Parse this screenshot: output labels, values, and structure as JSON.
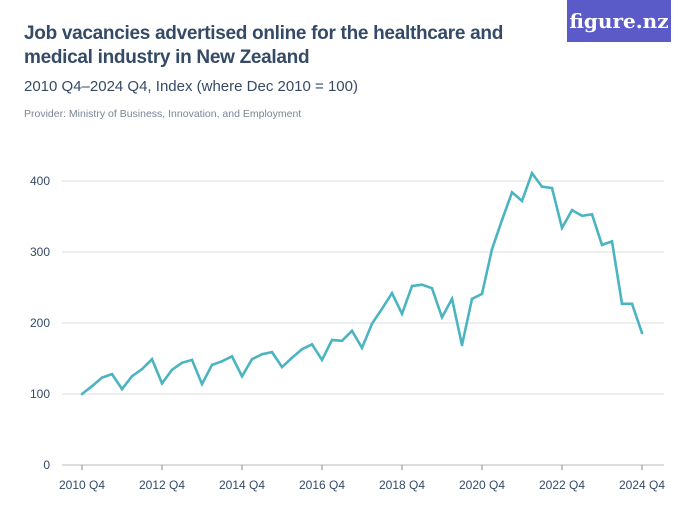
{
  "title": "Job vacancies advertised online for the healthcare and medical industry in New Zealand",
  "subtitle": "2010 Q4–2024 Q4, Index (where Dec 2010 = 100)",
  "provider": "Provider: Ministry of Business, Innovation, and Employment",
  "logo": "figure.nz",
  "chart_data": {
    "type": "line",
    "title": "Job vacancies advertised online for the healthcare and medical industry in New Zealand",
    "subtitle": "2010 Q4–2024 Q4, Index (where Dec 2010 = 100)",
    "xlabel": "",
    "ylabel": "",
    "ylim": [
      0,
      420
    ],
    "yticks": [
      0,
      100,
      200,
      300,
      400
    ],
    "xtick_labels": [
      "2010 Q4",
      "2012 Q4",
      "2014 Q4",
      "2016 Q4",
      "2018 Q4",
      "2020 Q4",
      "2022 Q4",
      "2024 Q4"
    ],
    "x_start": "2010 Q4",
    "x_end": "2024 Q4",
    "x_frequency": "quarterly",
    "grid": true,
    "color": "#4ab5c1",
    "values": [
      100,
      111,
      123,
      128,
      107,
      125,
      135,
      149,
      115,
      134,
      144,
      148,
      114,
      141,
      146,
      153,
      125,
      149,
      156,
      159,
      138,
      151,
      163,
      170,
      148,
      176,
      175,
      189,
      165,
      199,
      220,
      242,
      213,
      252,
      254,
      249,
      208,
      234,
      169,
      234,
      241,
      304,
      345,
      384,
      372,
      411,
      392,
      390,
      334,
      359,
      351,
      353,
      310,
      315,
      227,
      227,
      186
    ]
  }
}
